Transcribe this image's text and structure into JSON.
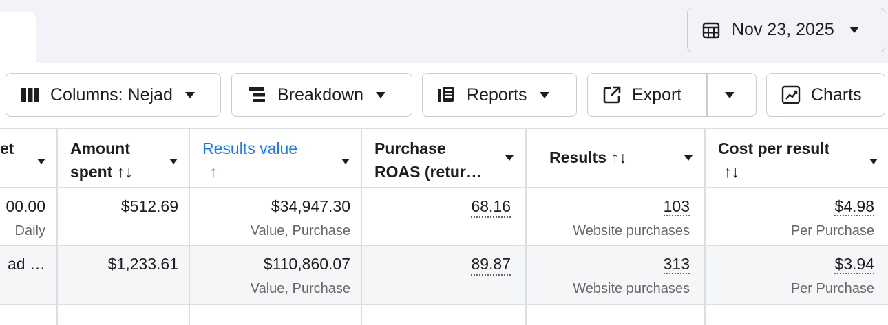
{
  "date_picker": {
    "label": "Nov 23, 2025"
  },
  "toolbar": {
    "columns_label": "Columns: Nejad",
    "breakdown_label": "Breakdown",
    "reports_label": "Reports",
    "export_label": "Export",
    "charts_label": "Charts"
  },
  "table": {
    "headers": {
      "budget_fragment": "et",
      "amount_spent_line1": "Amount",
      "amount_spent_line2": "spent ↑↓",
      "results_value_line1": "Results value",
      "results_value_line2": "↑",
      "roas_line1": "Purchase",
      "roas_line2": "ROAS (retur…",
      "results": "Results ↑↓",
      "cost_line1": "Cost per result",
      "cost_line2": "↑↓"
    },
    "rows": [
      {
        "budget": "00.00",
        "budget_sub": "Daily",
        "amount_spent": "$512.69",
        "results_value": "$34,947.30",
        "results_value_sub": "Value, Purchase",
        "roas": "68.16",
        "results": "103",
        "results_sub": "Website purchases",
        "cost": "$4.98",
        "cost_sub": "Per Purchase"
      },
      {
        "budget": "ad …",
        "amount_spent": "$1,233.61",
        "results_value": "$110,860.07",
        "results_value_sub": "Value, Purchase",
        "roas": "89.87",
        "results": "313",
        "results_sub": "Website purchases",
        "cost": "$3.94",
        "cost_sub": "Per Purchase"
      }
    ]
  },
  "colors": {
    "accent_blue": "#1877f2",
    "row_alt": "#f5f6f7",
    "border": "#dadde1",
    "topbar": "#f1f3f8"
  }
}
